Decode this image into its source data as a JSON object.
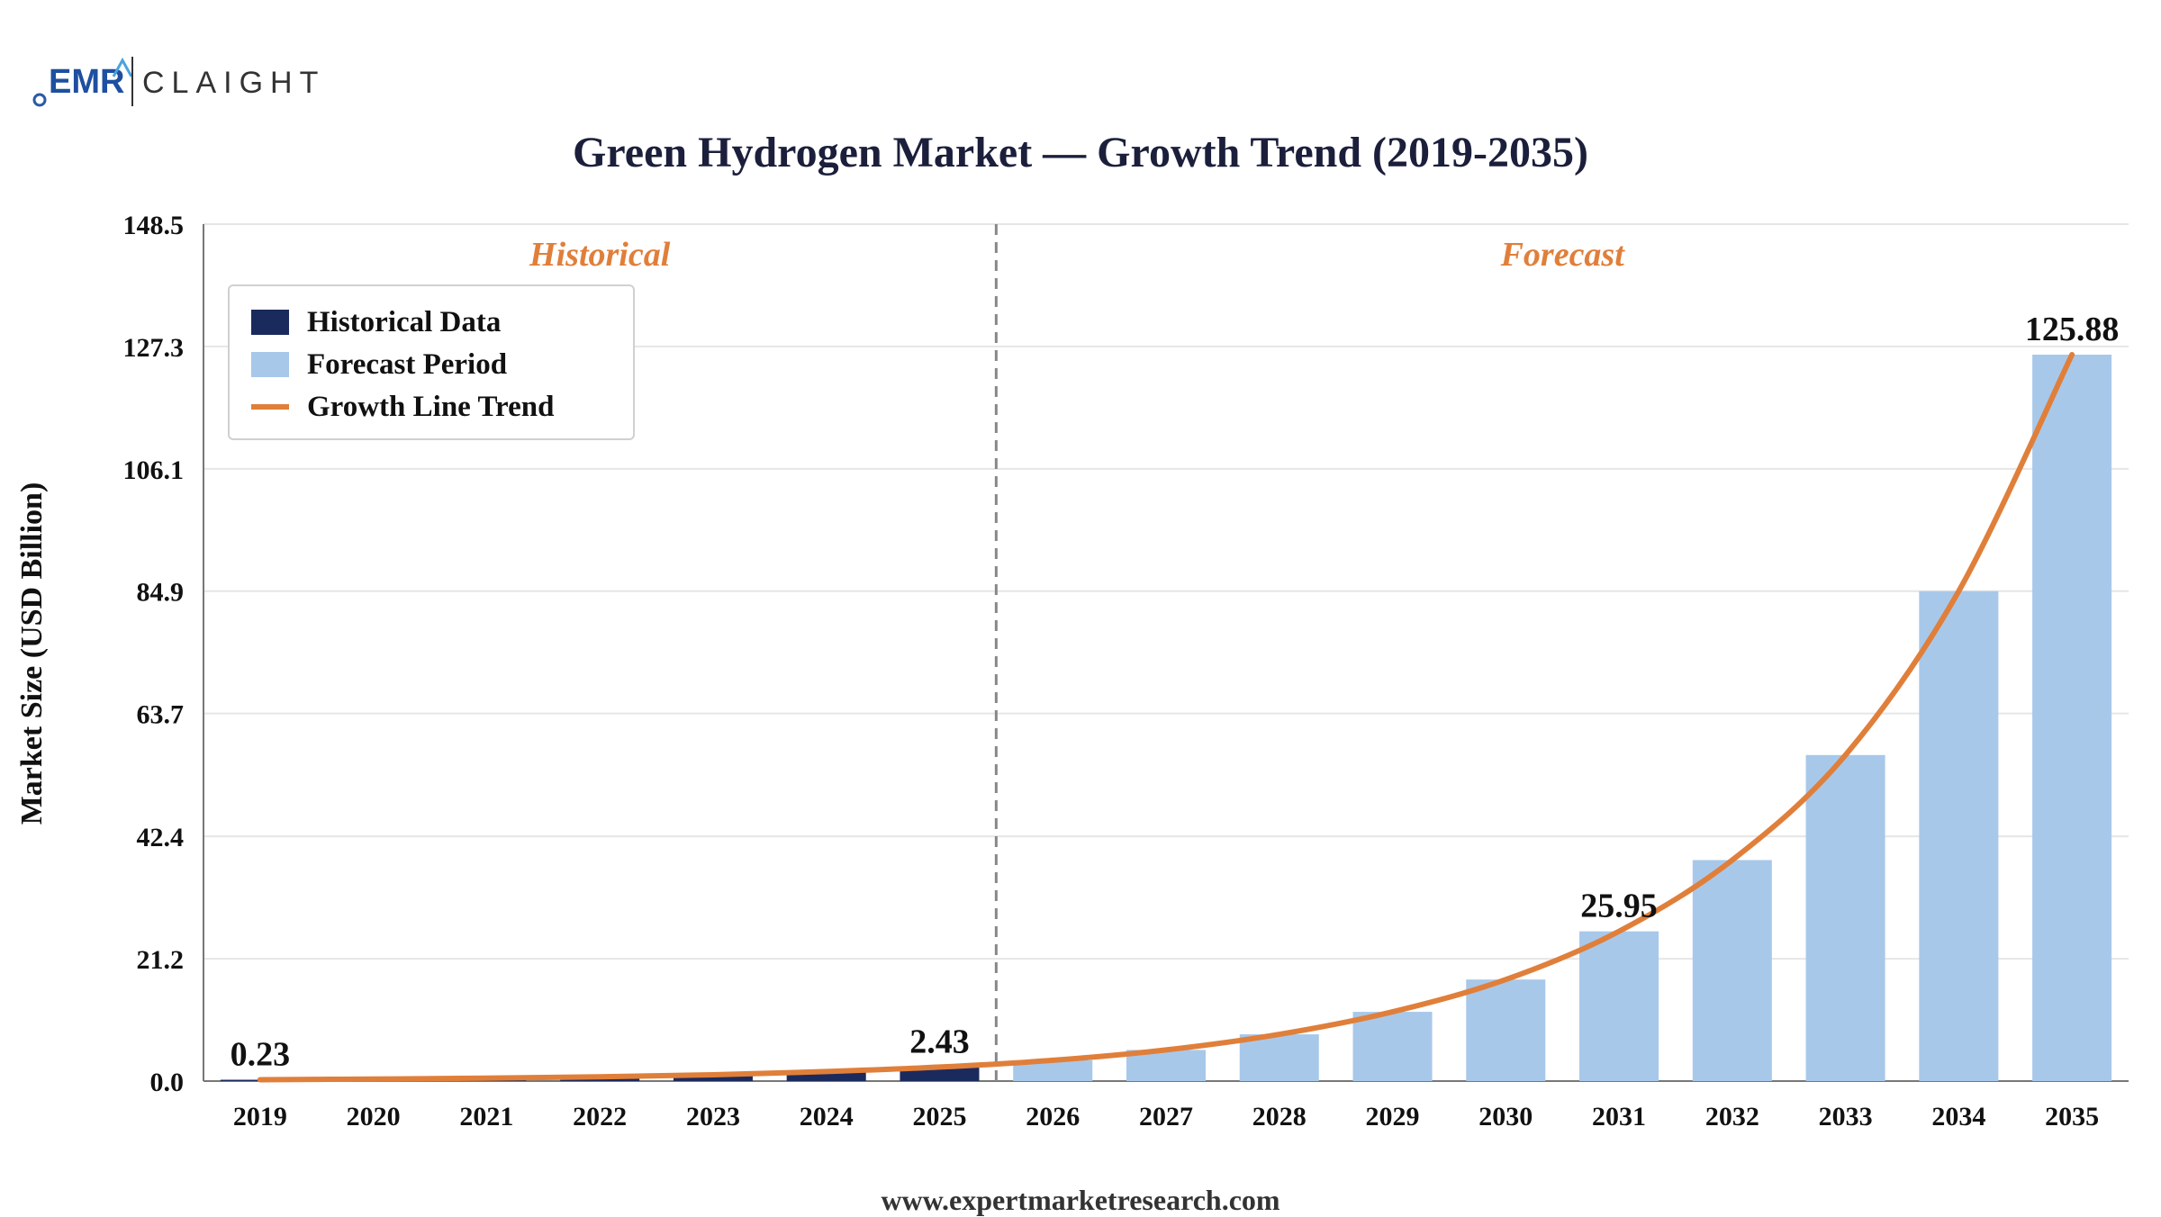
{
  "logo": {
    "emr": "EMR",
    "claight": "CLAIGHT"
  },
  "title": "Green Hydrogen Market — Growth Trend (2019-2035)",
  "footer": "www.expertmarketresearch.com",
  "legend": {
    "historical": "Historical Data",
    "forecast": "Forecast Period",
    "trend": "Growth Line Trend"
  },
  "colors": {
    "historical_bar": "#1b2a5c",
    "forecast_bar": "#a8c8ea",
    "trend_line": "#e07f3a",
    "region_label": "#e07f3a",
    "grid": "#e6e6e6",
    "axis": "#777777"
  },
  "chart_data": {
    "type": "bar",
    "title": "Green Hydrogen Market — Growth Trend (2019-2035)",
    "xlabel": "",
    "ylabel": "Market Size (USD Billion)",
    "ylim": [
      0,
      148.5
    ],
    "yticks": [
      "0.0",
      "21.2",
      "42.4",
      "63.7",
      "84.9",
      "106.1",
      "127.3",
      "148.5"
    ],
    "categories": [
      "2019",
      "2020",
      "2021",
      "2022",
      "2023",
      "2024",
      "2025",
      "2026",
      "2027",
      "2028",
      "2029",
      "2030",
      "2031",
      "2032",
      "2033",
      "2034",
      "2035"
    ],
    "series": [
      {
        "name": "Historical Data",
        "period": "historical",
        "values": [
          0.23,
          0.35,
          0.5,
          0.75,
          1.1,
          1.65,
          2.43,
          null,
          null,
          null,
          null,
          null,
          null,
          null,
          null,
          null,
          null
        ]
      },
      {
        "name": "Forecast Period",
        "period": "forecast",
        "values": [
          null,
          null,
          null,
          null,
          null,
          null,
          null,
          3.6,
          5.4,
          8.1,
          12.0,
          17.6,
          25.95,
          38.3,
          56.5,
          84.9,
          125.88
        ]
      },
      {
        "name": "Growth Line Trend",
        "type": "line",
        "values": [
          0.23,
          0.35,
          0.5,
          0.75,
          1.1,
          1.65,
          2.43,
          3.6,
          5.4,
          8.1,
          12.0,
          17.6,
          25.95,
          38.3,
          56.5,
          84.9,
          125.88
        ]
      }
    ],
    "region_labels": {
      "historical": "Historical",
      "forecast": "Forecast"
    },
    "divider_after": "2025",
    "annotations": [
      {
        "category": "2019",
        "text": "0.23"
      },
      {
        "category": "2025",
        "text": "2.43"
      },
      {
        "category": "2031",
        "text": "25.95"
      },
      {
        "category": "2035",
        "text": "125.88"
      }
    ],
    "grid": true,
    "legend_position": "top-left"
  }
}
